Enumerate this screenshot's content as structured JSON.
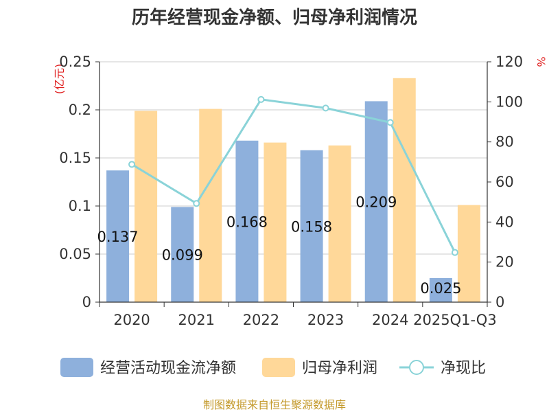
{
  "chart_data": {
    "type": "bar",
    "title": "历年经营现金净额、归母净利润情况",
    "categories": [
      "2020",
      "2021",
      "2022",
      "2023",
      "2024",
      "2025Q1-Q3"
    ],
    "series": [
      {
        "name": "经营活动现金流净额",
        "type": "bar",
        "axis": "left",
        "color": "#8eb0dc",
        "values": [
          0.137,
          0.099,
          0.168,
          0.158,
          0.209,
          0.025
        ],
        "labels": [
          "0.137",
          "0.099",
          "0.168",
          "0.158",
          "0.209",
          "0.025"
        ]
      },
      {
        "name": "归母净利润",
        "type": "bar",
        "axis": "left",
        "color": "#ffd899",
        "values": [
          0.199,
          0.201,
          0.166,
          0.163,
          0.233,
          0.101
        ]
      },
      {
        "name": "净现比",
        "type": "line",
        "axis": "right",
        "color": "#8ad3d8",
        "values": [
          68.8,
          49.3,
          101.2,
          96.9,
          89.7,
          24.8
        ]
      }
    ],
    "y_left": {
      "unit": "(亿元)",
      "min": 0,
      "max": 0.25,
      "ticks": [
        0,
        0.05,
        0.1,
        0.15,
        0.2,
        0.25
      ],
      "tick_labels": [
        "0",
        "0.05",
        "0.1",
        "0.15",
        "0.2",
        "0.25"
      ]
    },
    "y_right": {
      "unit": "%",
      "min": 0,
      "max": 120,
      "ticks": [
        0,
        20,
        40,
        60,
        80,
        100,
        120
      ],
      "tick_labels": [
        "0",
        "20",
        "40",
        "60",
        "80",
        "100",
        "120"
      ]
    },
    "grid": true,
    "legend_position": "bottom"
  },
  "source": "制图数据来自恒生聚源数据库"
}
